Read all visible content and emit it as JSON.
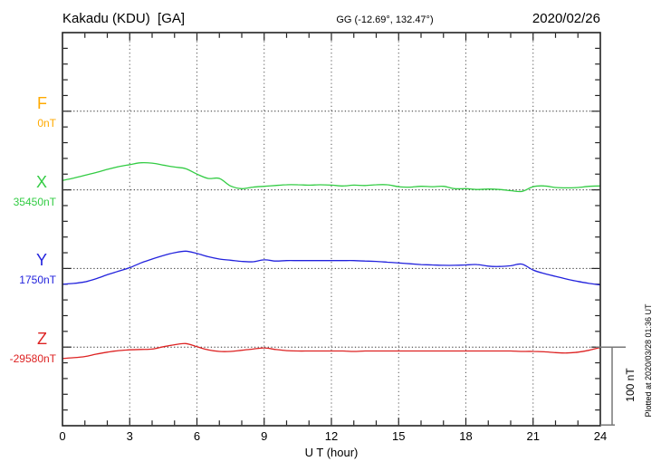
{
  "header": {
    "station": "Kakadu (KDU)  [GA]",
    "coords": "GG (-12.69°, 132.47°)",
    "date": "2020/02/26"
  },
  "axis": {
    "xlabel": "U T (hour)",
    "x_ticks": [
      0,
      3,
      6,
      9,
      12,
      15,
      18,
      21,
      24
    ]
  },
  "scale_bar": {
    "label": "100 nT",
    "value_nT": 100
  },
  "plotted_note": "Plotted at 2020/03/28 01:36 UT",
  "chart_data": {
    "type": "line",
    "xlabel": "U T (hour)",
    "x_range": [
      0,
      24
    ],
    "x_major_tick": 3,
    "x_minor_tick": 1,
    "y_minor_tick_nT": 20,
    "row_spacing_nT": 100,
    "grid": "dotted vertical lines every 3 h; dotted horizontal baseline per component",
    "frame_color": "#222222",
    "scale_bar_color": "#777777",
    "series": [
      {
        "component": "F",
        "baseline_label": "0nT",
        "baseline_nT": 0,
        "color": "#ffaa00",
        "points_h_nT": []
      },
      {
        "component": "X",
        "baseline_label": "35450nT",
        "baseline_nT": 35450,
        "color": "#33cc44",
        "points_h_nT": [
          [
            0,
            12
          ],
          [
            0.5,
            15
          ],
          [
            1,
            18.5
          ],
          [
            1.5,
            22
          ],
          [
            2,
            26
          ],
          [
            2.5,
            29.5
          ],
          [
            3,
            32
          ],
          [
            3.5,
            34.5
          ],
          [
            4,
            34
          ],
          [
            4.5,
            31.5
          ],
          [
            5,
            29
          ],
          [
            5.5,
            27
          ],
          [
            6,
            20
          ],
          [
            6.5,
            14.5
          ],
          [
            7,
            14.5
          ],
          [
            7.5,
            5
          ],
          [
            8,
            1.5
          ],
          [
            8.5,
            3.5
          ],
          [
            9,
            4.5
          ],
          [
            9.5,
            5.5
          ],
          [
            10,
            6.5
          ],
          [
            10.5,
            6.5
          ],
          [
            11,
            6
          ],
          [
            11.5,
            6.5
          ],
          [
            12,
            6
          ],
          [
            12.5,
            5
          ],
          [
            13,
            6
          ],
          [
            13.5,
            5.5
          ],
          [
            14,
            6.5
          ],
          [
            14.5,
            6.5
          ],
          [
            15,
            4
          ],
          [
            15.5,
            3.5
          ],
          [
            16,
            4.5
          ],
          [
            16.5,
            4
          ],
          [
            17,
            4.5
          ],
          [
            17.5,
            1.5
          ],
          [
            18,
            1.5
          ],
          [
            18.5,
            0.5
          ],
          [
            19,
            1
          ],
          [
            19.5,
            0.5
          ],
          [
            20,
            -1
          ],
          [
            20.5,
            -2
          ],
          [
            21,
            4
          ],
          [
            21.5,
            5
          ],
          [
            22,
            3
          ],
          [
            22.5,
            2.5
          ],
          [
            23,
            3
          ],
          [
            23.5,
            4.5
          ],
          [
            24,
            5
          ]
        ]
      },
      {
        "component": "Y",
        "baseline_label": "1750nT",
        "baseline_nT": 1750,
        "color": "#2222dd",
        "points_h_nT": [
          [
            0,
            -20
          ],
          [
            0.5,
            -19
          ],
          [
            1,
            -17
          ],
          [
            1.5,
            -13
          ],
          [
            2,
            -8
          ],
          [
            2.5,
            -3.5
          ],
          [
            3,
            1
          ],
          [
            3.5,
            7
          ],
          [
            4,
            12
          ],
          [
            4.5,
            16.5
          ],
          [
            5,
            20
          ],
          [
            5.5,
            22
          ],
          [
            6,
            19
          ],
          [
            6.5,
            15
          ],
          [
            7,
            12
          ],
          [
            7.5,
            10.5
          ],
          [
            8,
            9
          ],
          [
            8.5,
            8.5
          ],
          [
            9,
            11
          ],
          [
            9.5,
            9.5
          ],
          [
            10,
            10
          ],
          [
            10.5,
            10
          ],
          [
            11,
            10
          ],
          [
            11.5,
            10
          ],
          [
            12,
            10
          ],
          [
            12.5,
            10
          ],
          [
            13,
            10
          ],
          [
            13.5,
            9.5
          ],
          [
            14,
            9
          ],
          [
            14.5,
            8
          ],
          [
            15,
            7
          ],
          [
            15.5,
            6
          ],
          [
            16,
            5
          ],
          [
            16.5,
            4.5
          ],
          [
            17,
            4
          ],
          [
            17.5,
            4
          ],
          [
            18,
            4.5
          ],
          [
            18.5,
            5
          ],
          [
            19,
            3
          ],
          [
            19.5,
            2.5
          ],
          [
            20,
            3.5
          ],
          [
            20.5,
            5.5
          ],
          [
            21,
            -2
          ],
          [
            21.5,
            -6.5
          ],
          [
            22,
            -10
          ],
          [
            22.5,
            -13.5
          ],
          [
            23,
            -16.5
          ],
          [
            23.5,
            -19
          ],
          [
            24,
            -21
          ]
        ]
      },
      {
        "component": "Z",
        "baseline_label": "-29580nT",
        "baseline_nT": -29580,
        "color": "#dd2222",
        "points_h_nT": [
          [
            0,
            -14.5
          ],
          [
            0.5,
            -13.5
          ],
          [
            1,
            -12
          ],
          [
            1.5,
            -9
          ],
          [
            2,
            -6.5
          ],
          [
            2.5,
            -4.5
          ],
          [
            3,
            -3.5
          ],
          [
            3.5,
            -3
          ],
          [
            4,
            -2.5
          ],
          [
            4.5,
            0.5
          ],
          [
            5,
            3
          ],
          [
            5.5,
            4.5
          ],
          [
            6,
            0.5
          ],
          [
            6.5,
            -3.5
          ],
          [
            7,
            -5.5
          ],
          [
            7.5,
            -5.5
          ],
          [
            8,
            -4
          ],
          [
            8.5,
            -2.5
          ],
          [
            9,
            -1
          ],
          [
            9.5,
            -3
          ],
          [
            10,
            -4.5
          ],
          [
            10.5,
            -5
          ],
          [
            11,
            -5
          ],
          [
            11.5,
            -5
          ],
          [
            12,
            -5
          ],
          [
            12.5,
            -5
          ],
          [
            13,
            -5.5
          ],
          [
            13.5,
            -5
          ],
          [
            14,
            -5
          ],
          [
            14.5,
            -5
          ],
          [
            15,
            -5
          ],
          [
            15.5,
            -5
          ],
          [
            16,
            -5
          ],
          [
            16.5,
            -5
          ],
          [
            17,
            -5
          ],
          [
            17.5,
            -5
          ],
          [
            18,
            -5
          ],
          [
            18.5,
            -5
          ],
          [
            19,
            -5
          ],
          [
            19.5,
            -5
          ],
          [
            20,
            -5
          ],
          [
            20.5,
            -5.5
          ],
          [
            21,
            -5.5
          ],
          [
            21.5,
            -6
          ],
          [
            22,
            -7
          ],
          [
            22.5,
            -7.5
          ],
          [
            23,
            -6.5
          ],
          [
            23.5,
            -4
          ],
          [
            24,
            -0.5
          ]
        ]
      }
    ]
  }
}
